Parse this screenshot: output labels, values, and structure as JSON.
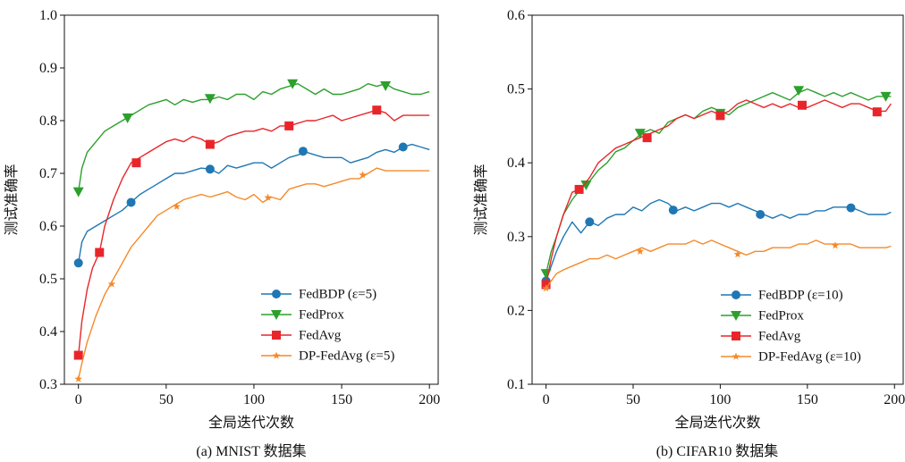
{
  "chart_data": [
    {
      "type": "line",
      "caption": "(a) MNIST 数据集",
      "xlabel": "全局迭代次数",
      "ylabel": "测试准确率",
      "xlim": [
        -8,
        205
      ],
      "ylim": [
        0.3,
        1.0
      ],
      "xticks": [
        0,
        50,
        100,
        150,
        200
      ],
      "yticks": [
        0.3,
        0.4,
        0.5,
        0.6,
        0.7,
        0.8,
        0.9,
        1.0
      ],
      "grid": false,
      "legend_position": "bottom-right",
      "series": [
        {
          "name": "FedBDP (ε=5)",
          "color": "#1f77b4",
          "marker": "circle",
          "x": [
            0,
            2,
            5,
            10,
            15,
            20,
            25,
            30,
            35,
            40,
            45,
            50,
            55,
            60,
            65,
            70,
            75,
            80,
            85,
            90,
            95,
            100,
            105,
            110,
            115,
            120,
            125,
            130,
            135,
            140,
            145,
            150,
            155,
            160,
            165,
            170,
            175,
            180,
            185,
            190,
            195,
            200
          ],
          "y": [
            0.53,
            0.57,
            0.59,
            0.6,
            0.61,
            0.62,
            0.63,
            0.645,
            0.66,
            0.67,
            0.68,
            0.69,
            0.7,
            0.7,
            0.705,
            0.71,
            0.708,
            0.7,
            0.715,
            0.71,
            0.715,
            0.72,
            0.72,
            0.71,
            0.72,
            0.73,
            0.735,
            0.74,
            0.735,
            0.73,
            0.73,
            0.73,
            0.72,
            0.725,
            0.73,
            0.74,
            0.745,
            0.74,
            0.75,
            0.755,
            0.75,
            0.745
          ],
          "marker_x": [
            0,
            30,
            75,
            128,
            185
          ],
          "marker_y": [
            0.53,
            0.645,
            0.708,
            0.742,
            0.75
          ]
        },
        {
          "name": "FedProx",
          "color": "#2ca02c",
          "marker": "triangle-down",
          "x": [
            0,
            2,
            5,
            10,
            15,
            20,
            25,
            30,
            35,
            40,
            45,
            50,
            55,
            60,
            65,
            70,
            75,
            80,
            85,
            90,
            95,
            100,
            105,
            110,
            115,
            120,
            125,
            130,
            135,
            140,
            145,
            150,
            155,
            160,
            165,
            170,
            175,
            180,
            185,
            190,
            195,
            200
          ],
          "y": [
            0.665,
            0.71,
            0.74,
            0.76,
            0.78,
            0.79,
            0.8,
            0.81,
            0.82,
            0.83,
            0.835,
            0.84,
            0.83,
            0.84,
            0.835,
            0.84,
            0.84,
            0.845,
            0.84,
            0.85,
            0.85,
            0.84,
            0.855,
            0.85,
            0.86,
            0.865,
            0.87,
            0.86,
            0.85,
            0.86,
            0.85,
            0.85,
            0.855,
            0.86,
            0.87,
            0.865,
            0.87,
            0.86,
            0.855,
            0.85,
            0.85,
            0.855
          ],
          "marker_x": [
            0,
            28,
            75,
            122,
            175
          ],
          "marker_y": [
            0.665,
            0.805,
            0.842,
            0.87,
            0.866
          ]
        },
        {
          "name": "FedAvg",
          "color": "#e8262a",
          "marker": "square",
          "x": [
            0,
            2,
            5,
            8,
            12,
            15,
            20,
            25,
            30,
            35,
            40,
            45,
            50,
            55,
            60,
            65,
            70,
            75,
            80,
            85,
            90,
            95,
            100,
            105,
            110,
            115,
            120,
            125,
            130,
            135,
            140,
            145,
            150,
            155,
            160,
            165,
            170,
            175,
            180,
            185,
            190,
            195,
            200
          ],
          "y": [
            0.355,
            0.42,
            0.48,
            0.52,
            0.55,
            0.6,
            0.65,
            0.69,
            0.72,
            0.73,
            0.74,
            0.75,
            0.76,
            0.765,
            0.76,
            0.77,
            0.765,
            0.755,
            0.76,
            0.77,
            0.775,
            0.78,
            0.78,
            0.785,
            0.78,
            0.79,
            0.79,
            0.795,
            0.8,
            0.8,
            0.805,
            0.81,
            0.8,
            0.805,
            0.81,
            0.815,
            0.82,
            0.815,
            0.8,
            0.81,
            0.81,
            0.81,
            0.81
          ],
          "marker_x": [
            0,
            12,
            33,
            75,
            120,
            170
          ],
          "marker_y": [
            0.355,
            0.55,
            0.72,
            0.755,
            0.79,
            0.82
          ]
        },
        {
          "name": "DP-FedAvg (ε=5)",
          "color": "#f58a2b",
          "marker": "star",
          "x": [
            0,
            2,
            5,
            10,
            15,
            20,
            25,
            30,
            35,
            40,
            45,
            50,
            55,
            60,
            65,
            70,
            75,
            80,
            85,
            90,
            95,
            100,
            105,
            110,
            115,
            120,
            125,
            130,
            135,
            140,
            145,
            150,
            155,
            160,
            165,
            170,
            175,
            180,
            185,
            190,
            195,
            200
          ],
          "y": [
            0.31,
            0.34,
            0.38,
            0.43,
            0.47,
            0.5,
            0.53,
            0.56,
            0.58,
            0.6,
            0.62,
            0.63,
            0.64,
            0.65,
            0.655,
            0.66,
            0.655,
            0.66,
            0.665,
            0.655,
            0.65,
            0.66,
            0.645,
            0.655,
            0.65,
            0.67,
            0.675,
            0.68,
            0.68,
            0.675,
            0.68,
            0.685,
            0.69,
            0.69,
            0.7,
            0.71,
            0.705,
            0.705,
            0.705,
            0.705,
            0.705,
            0.705
          ],
          "marker_x": [
            0,
            19,
            56,
            108,
            162
          ],
          "marker_y": [
            0.31,
            0.49,
            0.637,
            0.654,
            0.697
          ]
        }
      ]
    },
    {
      "type": "line",
      "caption": "(b) CIFAR10 数据集",
      "xlabel": "全局迭代次数",
      "ylabel": "测试准确率",
      "xlim": [
        -8,
        205
      ],
      "ylim": [
        0.1,
        0.6
      ],
      "xticks": [
        0,
        50,
        100,
        150,
        200
      ],
      "yticks": [
        0.1,
        0.2,
        0.3,
        0.4,
        0.5,
        0.6
      ],
      "grid": false,
      "legend_position": "bottom-right",
      "series": [
        {
          "name": "FedBDP (ε=10)",
          "color": "#1f77b4",
          "marker": "circle",
          "x": [
            0,
            3,
            6,
            10,
            15,
            20,
            25,
            30,
            35,
            40,
            45,
            50,
            55,
            60,
            65,
            70,
            75,
            80,
            85,
            90,
            95,
            100,
            105,
            110,
            115,
            120,
            125,
            130,
            135,
            140,
            145,
            150,
            155,
            160,
            165,
            170,
            175,
            180,
            185,
            190,
            195,
            198
          ],
          "y": [
            0.24,
            0.26,
            0.28,
            0.3,
            0.32,
            0.305,
            0.32,
            0.315,
            0.325,
            0.33,
            0.33,
            0.34,
            0.335,
            0.345,
            0.35,
            0.345,
            0.335,
            0.34,
            0.335,
            0.34,
            0.345,
            0.345,
            0.34,
            0.345,
            0.34,
            0.335,
            0.33,
            0.325,
            0.33,
            0.325,
            0.33,
            0.33,
            0.335,
            0.335,
            0.34,
            0.34,
            0.34,
            0.335,
            0.33,
            0.33,
            0.33,
            0.333
          ],
          "marker_x": [
            0,
            25,
            73,
            123,
            175
          ],
          "marker_y": [
            0.24,
            0.32,
            0.336,
            0.33,
            0.339
          ]
        },
        {
          "name": "FedProx",
          "color": "#2ca02c",
          "marker": "triangle-down",
          "x": [
            0,
            3,
            6,
            10,
            15,
            20,
            25,
            30,
            35,
            40,
            45,
            50,
            55,
            60,
            65,
            70,
            75,
            80,
            85,
            90,
            95,
            100,
            105,
            110,
            115,
            120,
            125,
            130,
            135,
            140,
            145,
            150,
            155,
            160,
            165,
            170,
            175,
            180,
            185,
            190,
            195,
            198
          ],
          "y": [
            0.25,
            0.28,
            0.3,
            0.33,
            0.35,
            0.365,
            0.375,
            0.39,
            0.4,
            0.415,
            0.42,
            0.43,
            0.44,
            0.445,
            0.44,
            0.455,
            0.46,
            0.465,
            0.46,
            0.47,
            0.475,
            0.47,
            0.465,
            0.475,
            0.48,
            0.485,
            0.49,
            0.495,
            0.49,
            0.485,
            0.495,
            0.5,
            0.495,
            0.49,
            0.495,
            0.49,
            0.495,
            0.49,
            0.485,
            0.49,
            0.49,
            0.49
          ],
          "marker_x": [
            0,
            23,
            54,
            100,
            145,
            195
          ],
          "marker_y": [
            0.25,
            0.37,
            0.44,
            0.467,
            0.498,
            0.49
          ]
        },
        {
          "name": "FedAvg",
          "color": "#e8262a",
          "marker": "square",
          "x": [
            0,
            3,
            6,
            10,
            15,
            20,
            25,
            30,
            35,
            40,
            45,
            50,
            55,
            60,
            65,
            70,
            75,
            80,
            85,
            90,
            95,
            100,
            105,
            110,
            115,
            120,
            125,
            130,
            135,
            140,
            145,
            150,
            155,
            160,
            165,
            170,
            175,
            180,
            185,
            190,
            195,
            198
          ],
          "y": [
            0.235,
            0.27,
            0.3,
            0.33,
            0.36,
            0.365,
            0.38,
            0.4,
            0.41,
            0.42,
            0.425,
            0.43,
            0.435,
            0.44,
            0.445,
            0.45,
            0.46,
            0.465,
            0.46,
            0.465,
            0.47,
            0.465,
            0.47,
            0.48,
            0.485,
            0.48,
            0.475,
            0.48,
            0.475,
            0.48,
            0.475,
            0.475,
            0.48,
            0.485,
            0.48,
            0.475,
            0.48,
            0.48,
            0.475,
            0.47,
            0.47,
            0.48
          ],
          "marker_x": [
            0,
            19,
            58,
            100,
            147,
            190
          ],
          "marker_y": [
            0.235,
            0.364,
            0.434,
            0.464,
            0.478,
            0.469
          ]
        },
        {
          "name": "DP-FedAvg (ε=10)",
          "color": "#f58a2b",
          "marker": "star",
          "x": [
            0,
            3,
            6,
            10,
            15,
            20,
            25,
            30,
            35,
            40,
            45,
            50,
            55,
            60,
            65,
            70,
            75,
            80,
            85,
            90,
            95,
            100,
            105,
            110,
            115,
            120,
            125,
            130,
            135,
            140,
            145,
            150,
            155,
            160,
            165,
            170,
            175,
            180,
            185,
            190,
            195,
            198
          ],
          "y": [
            0.23,
            0.24,
            0.25,
            0.255,
            0.26,
            0.265,
            0.27,
            0.27,
            0.275,
            0.27,
            0.275,
            0.28,
            0.285,
            0.28,
            0.285,
            0.29,
            0.29,
            0.29,
            0.295,
            0.29,
            0.295,
            0.29,
            0.285,
            0.28,
            0.275,
            0.28,
            0.28,
            0.285,
            0.285,
            0.285,
            0.29,
            0.29,
            0.295,
            0.29,
            0.29,
            0.29,
            0.29,
            0.285,
            0.285,
            0.285,
            0.285,
            0.287
          ],
          "marker_x": [
            0,
            54,
            110,
            166
          ],
          "marker_y": [
            0.23,
            0.28,
            0.276,
            0.288
          ]
        }
      ]
    }
  ]
}
